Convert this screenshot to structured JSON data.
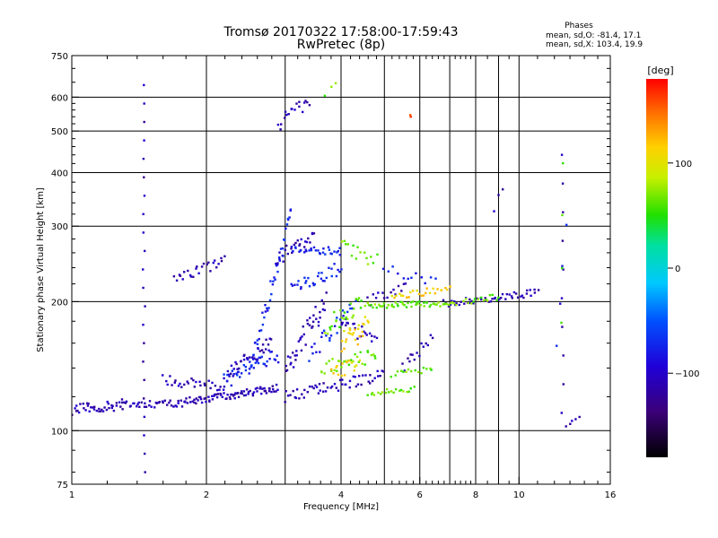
{
  "chart_data": {
    "type": "scatter",
    "title": "Tromsø 20170322 17:58:00-17:59:43",
    "subtitle": "RwPretec (8p)",
    "xlabel": "Frequency [MHz]",
    "ylabel": "Stationary phase Virtual Height [km]",
    "x_scale": "log",
    "y_scale": "log",
    "xlim": [
      1,
      16
    ],
    "ylim": [
      75,
      750
    ],
    "x_ticks": [
      1,
      2,
      4,
      6,
      8,
      10,
      16
    ],
    "x_tick_labels": [
      "1",
      "2",
      "4",
      "6",
      "8",
      "10",
      "16"
    ],
    "x_grid_lines": [
      1,
      2,
      3,
      4,
      5,
      6,
      7,
      8,
      9,
      10,
      16
    ],
    "x_minor_ticks": [
      1.2,
      1.4,
      1.6,
      1.8,
      2.2,
      2.4,
      2.6,
      2.8,
      3.2,
      3.4,
      3.6,
      3.8,
      4.2,
      4.4,
      4.6,
      4.8,
      5.2,
      5.4,
      5.6,
      5.8,
      6.2,
      6.4,
      6.6,
      6.8,
      7.2,
      7.4,
      7.6,
      7.8,
      8.5,
      9.5,
      11,
      12,
      13,
      14,
      15
    ],
    "y_ticks": [
      75,
      100,
      200,
      300,
      400,
      500,
      600,
      750
    ],
    "y_tick_labels": [
      "75",
      "100",
      "200",
      "300",
      "400",
      "500",
      "600",
      "750"
    ],
    "y_grid_lines": [
      100,
      200,
      300,
      400,
      500,
      600
    ],
    "y_minor_ticks": [
      80,
      90,
      120,
      140,
      160,
      180,
      220,
      240,
      260,
      280,
      320,
      340,
      360,
      380,
      420,
      440,
      460,
      480,
      520,
      540,
      560,
      580,
      650,
      700
    ],
    "grid": true,
    "phase_note": {
      "title": "Phases",
      "line_o": "mean, sd,O: -81.4, 17.1",
      "line_x": "mean, sd,X: 103.4, 19.9"
    },
    "colorbar": {
      "label": "[deg]",
      "range": [
        -180,
        180
      ],
      "ticks": [
        100,
        0,
        -100
      ],
      "tick_labels": [
        "100",
        "0",
        "−100"
      ],
      "colormap": "rainbow (black-purple-blue-cyan-green-yellow-orange-red)"
    },
    "series": [
      {
        "phase_deg": -110,
        "segments": [
          {
            "x": [
              1.0,
              1.3
            ],
            "y": [
              112,
              115
            ],
            "n": 40,
            "jy": 0.03
          },
          {
            "x": [
              1.3,
              1.8
            ],
            "y": [
              115,
              116
            ],
            "n": 40,
            "jy": 0.02
          },
          {
            "x": [
              1.8,
              2.3
            ],
            "y": [
              117,
              121
            ],
            "n": 40,
            "jy": 0.02
          },
          {
            "x": [
              2.3,
              2.9
            ],
            "y": [
              121,
              126
            ],
            "n": 40,
            "jy": 0.02
          },
          {
            "x": [
              1.6,
              2.2
            ],
            "y": [
              131,
              126
            ],
            "n": 30,
            "jy": 0.03
          },
          {
            "x": [
              2.2,
              2.8
            ],
            "y": [
              135,
              160
            ],
            "n": 40,
            "jy": 0.04
          },
          {
            "x": [
              1.7,
              2.2
            ],
            "y": [
              226,
              250
            ],
            "n": 25,
            "jy": 0.03
          },
          {
            "x": [
              2.85,
              3.5
            ],
            "y": [
              250,
              290
            ],
            "n": 25,
            "jy": 0.04
          },
          {
            "x": [
              3.0,
              3.7
            ],
            "y": [
              140,
              200
            ],
            "n": 40,
            "jy": 0.06
          },
          {
            "x": [
              3.0,
              3.6
            ],
            "y": [
              120,
              125
            ],
            "n": 20,
            "jy": 0.03
          },
          {
            "x": [
              3.6,
              5.0
            ],
            "y": [
              125,
              135
            ],
            "n": 35,
            "jy": 0.03
          },
          {
            "x": [
              4.0,
              4.8
            ],
            "y": [
              180,
              160
            ],
            "n": 20,
            "jy": 0.04
          },
          {
            "x": [
              4.6,
              5.6
            ],
            "y": [
              200,
              215
            ],
            "n": 15,
            "jy": 0.03
          },
          {
            "x": [
              5.5,
              6.4
            ],
            "y": [
              140,
              165
            ],
            "n": 15,
            "jy": 0.03
          },
          {
            "x": [
              6.8,
              11.0
            ],
            "y": [
              198,
              210
            ],
            "n": 50,
            "jy": 0.02
          },
          {
            "x": [
              2.9,
              3.4
            ],
            "y": [
              520,
              590
            ],
            "n": 18,
            "jy": 0.04
          },
          {
            "x": [
              1.45,
              1.45
            ],
            "y": [
              80,
              640
            ],
            "n": 22,
            "jy": 0.0
          },
          {
            "x": [
              8.8,
              9.2
            ],
            "y": [
              330,
              370
            ],
            "n": 3,
            "jy": 0.02
          },
          {
            "x": [
              12.5,
              12.5
            ],
            "y": [
              110,
              440
            ],
            "n": 10,
            "jy": 0.0
          },
          {
            "x": [
              12.8,
              13.6
            ],
            "y": [
              103,
              107
            ],
            "n": 5,
            "jy": 0.01
          }
        ]
      },
      {
        "phase_deg": -75,
        "segments": [
          {
            "x": [
              2.5,
              3.1
            ],
            "y": [
              140,
              320
            ],
            "n": 45,
            "jy": 0.06
          },
          {
            "x": [
              2.2,
              2.9
            ],
            "y": [
              130,
              150
            ],
            "n": 35,
            "jy": 0.04
          },
          {
            "x": [
              3.1,
              4.0
            ],
            "y": [
              265,
              262
            ],
            "n": 30,
            "jy": 0.02
          },
          {
            "x": [
              3.1,
              4.0
            ],
            "y": [
              215,
              240
            ],
            "n": 30,
            "jy": 0.04
          },
          {
            "x": [
              3.4,
              4.3
            ],
            "y": [
              150,
              200
            ],
            "n": 25,
            "jy": 0.05
          },
          {
            "x": [
              5.0,
              6.5
            ],
            "y": [
              240,
              220
            ],
            "n": 12,
            "jy": 0.03
          },
          {
            "x": [
              12.2,
              12.7
            ],
            "y": [
              160,
              300
            ],
            "n": 4,
            "jy": 0.02
          }
        ]
      },
      {
        "phase_deg": 65,
        "segments": [
          {
            "x": [
              3.6,
              4.8
            ],
            "y": [
              140,
              150
            ],
            "n": 30,
            "jy": 0.04
          },
          {
            "x": [
              3.7,
              4.5
            ],
            "y": [
              175,
              200
            ],
            "n": 25,
            "jy": 0.05
          },
          {
            "x": [
              4.0,
              4.8
            ],
            "y": [
              270,
              250
            ],
            "n": 15,
            "jy": 0.04
          },
          {
            "x": [
              4.6,
              5.8
            ],
            "y": [
              122,
              125
            ],
            "n": 20,
            "jy": 0.02
          },
          {
            "x": [
              4.6,
              7.2
            ],
            "y": [
              196,
              198
            ],
            "n": 55,
            "jy": 0.015
          },
          {
            "x": [
              7.5,
              9.0
            ],
            "y": [
              200,
              205
            ],
            "n": 15,
            "jy": 0.02
          },
          {
            "x": [
              5.2,
              6.4
            ],
            "y": [
              135,
              140
            ],
            "n": 15,
            "jy": 0.02
          },
          {
            "x": [
              3.7,
              3.9
            ],
            "y": [
              600,
              650
            ],
            "n": 3,
            "jy": 0.02
          },
          {
            "x": [
              12.4,
              12.6
            ],
            "y": [
              180,
              420
            ],
            "n": 4,
            "jy": 0.03
          }
        ]
      },
      {
        "phase_deg": 110,
        "segments": [
          {
            "x": [
              4.0,
              4.6
            ],
            "y": [
              160,
              175
            ],
            "n": 25,
            "jy": 0.06
          },
          {
            "x": [
              5.2,
              7.0
            ],
            "y": [
              205,
              215
            ],
            "n": 25,
            "jy": 0.02
          },
          {
            "x": [
              3.8,
              4.4
            ],
            "y": [
              135,
              145
            ],
            "n": 15,
            "jy": 0.04
          }
        ]
      },
      {
        "phase_deg": 170,
        "segments": [
          {
            "x": [
              5.7,
              5.7
            ],
            "y": [
              540,
              545
            ],
            "n": 2,
            "jy": 0.0
          }
        ]
      }
    ]
  }
}
